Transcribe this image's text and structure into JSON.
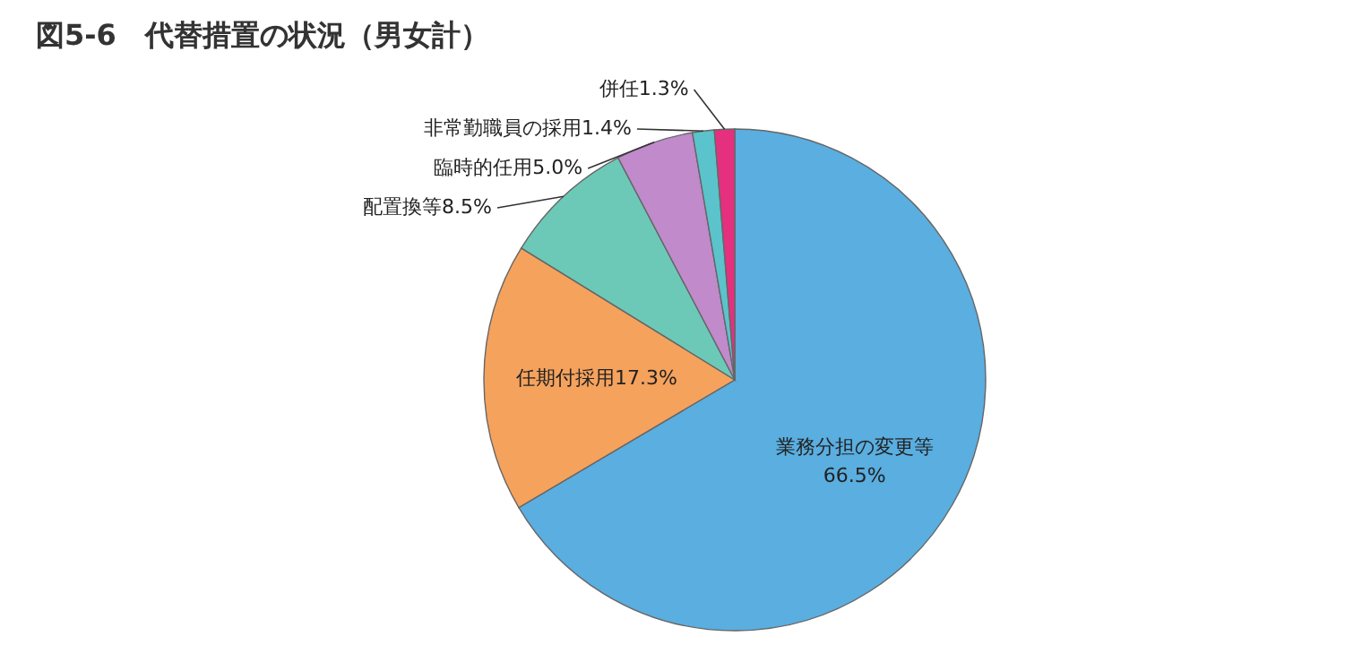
{
  "chart_data": {
    "type": "pie",
    "title": "図5-6　代替措置の状況（男女計）",
    "categories": [
      "業務分担の変更等",
      "任期付採用",
      "配置換等",
      "臨時的任用",
      "非常勤職員の採用",
      "併任"
    ],
    "values": [
      66.5,
      17.3,
      8.5,
      5.0,
      1.4,
      1.3
    ],
    "value_labels": [
      "66.5%",
      "17.3%",
      "8.5%",
      "5.0%",
      "1.4%",
      "1.3%"
    ],
    "colors": [
      "#5aaee0",
      "#f5a25d",
      "#6cc9b8",
      "#c08acb",
      "#5bc3cc",
      "#e4307f"
    ]
  }
}
